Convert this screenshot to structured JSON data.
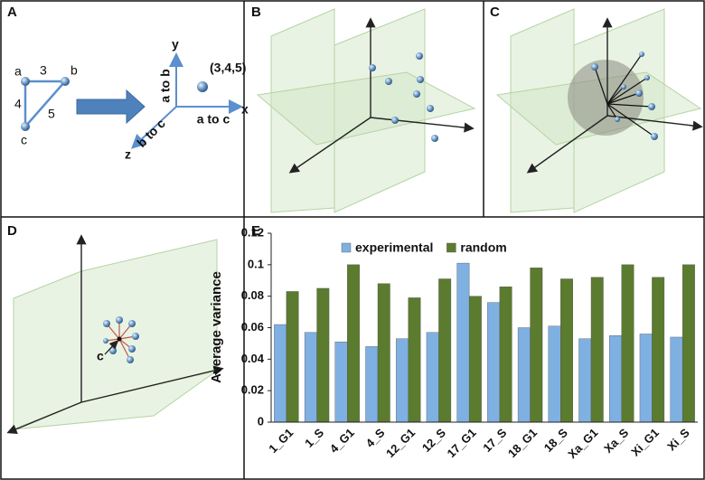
{
  "panels": {
    "labels": [
      "A",
      "B",
      "C",
      "D",
      "E"
    ],
    "a": {
      "vertices": [
        "a",
        "b",
        "c"
      ],
      "sides": [
        "3",
        "4",
        "5"
      ],
      "axes": [
        "y",
        "x",
        "z"
      ],
      "axis_labels": [
        "a to b",
        "a to c",
        "b to c"
      ],
      "point": "(3,4,5)"
    },
    "d": {
      "point": "c"
    }
  },
  "chart_data": {
    "type": "bar",
    "y_label": "Average variance",
    "categories": [
      "1_G1",
      "1_S",
      "4_G1",
      "4_S",
      "12_G1",
      "12_S",
      "17_G1",
      "17_S",
      "18_G1",
      "18_S",
      "Xa_G1",
      "Xa_S",
      "Xi_G1",
      "Xi_S"
    ],
    "series": [
      {
        "name": "experimental",
        "color": "#7fb0e2",
        "values": [
          0.062,
          0.057,
          0.051,
          0.048,
          0.053,
          0.057,
          0.101,
          0.076,
          0.06,
          0.061,
          0.053,
          0.055,
          0.056,
          0.054
        ]
      },
      {
        "name": "random",
        "color": "#5b7b2f",
        "values": [
          0.083,
          0.085,
          0.1,
          0.088,
          0.079,
          0.091,
          0.08,
          0.086,
          0.098,
          0.091,
          0.092,
          0.1,
          0.092,
          0.1
        ]
      }
    ],
    "ylim": [
      0,
      0.12
    ],
    "yticks": [
      0,
      0.02,
      0.04,
      0.06,
      0.08,
      0.1,
      0.12
    ],
    "grid": false,
    "legend": "top"
  }
}
